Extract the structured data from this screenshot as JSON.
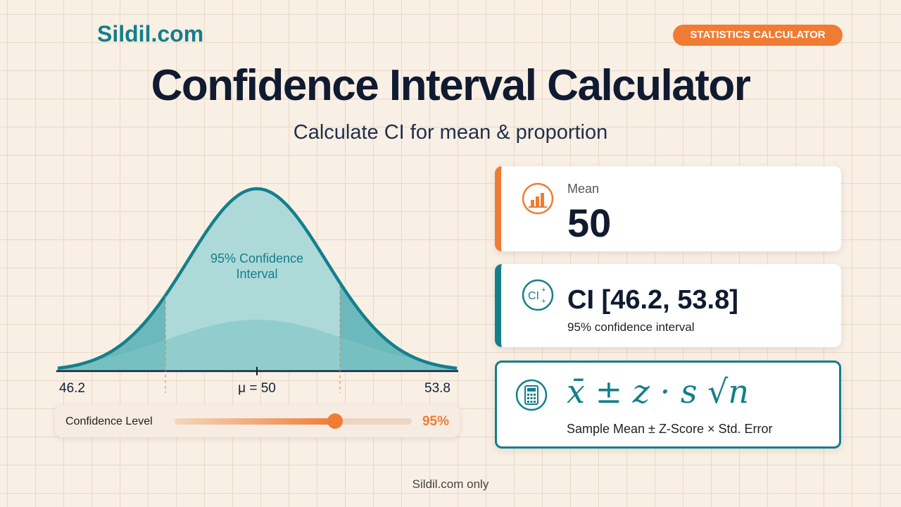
{
  "header": {
    "brand": "Sildil.com",
    "badge": "STATISTICS CALCULATOR",
    "title": "Confidence Interval Calculator",
    "subtitle": "Calculate CI for mean & proportion"
  },
  "curve": {
    "interval_label": [
      "95% Confidence",
      "Interval"
    ],
    "axis_labels": [
      "46.2",
      "μ = 50",
      "53.8"
    ]
  },
  "slider": {
    "label": "Confidence Level",
    "value": "95%"
  },
  "cards": [
    {
      "label": "Mean",
      "value": "50"
    },
    {
      "value": "CI [46.2, 53.8]",
      "label": "95% confidence interval"
    },
    {
      "formula": "x̄ ± z · s √n",
      "label": "Sample Mean ± Z-Score × Std. Error"
    }
  ],
  "footer": "Sildil.com only"
}
